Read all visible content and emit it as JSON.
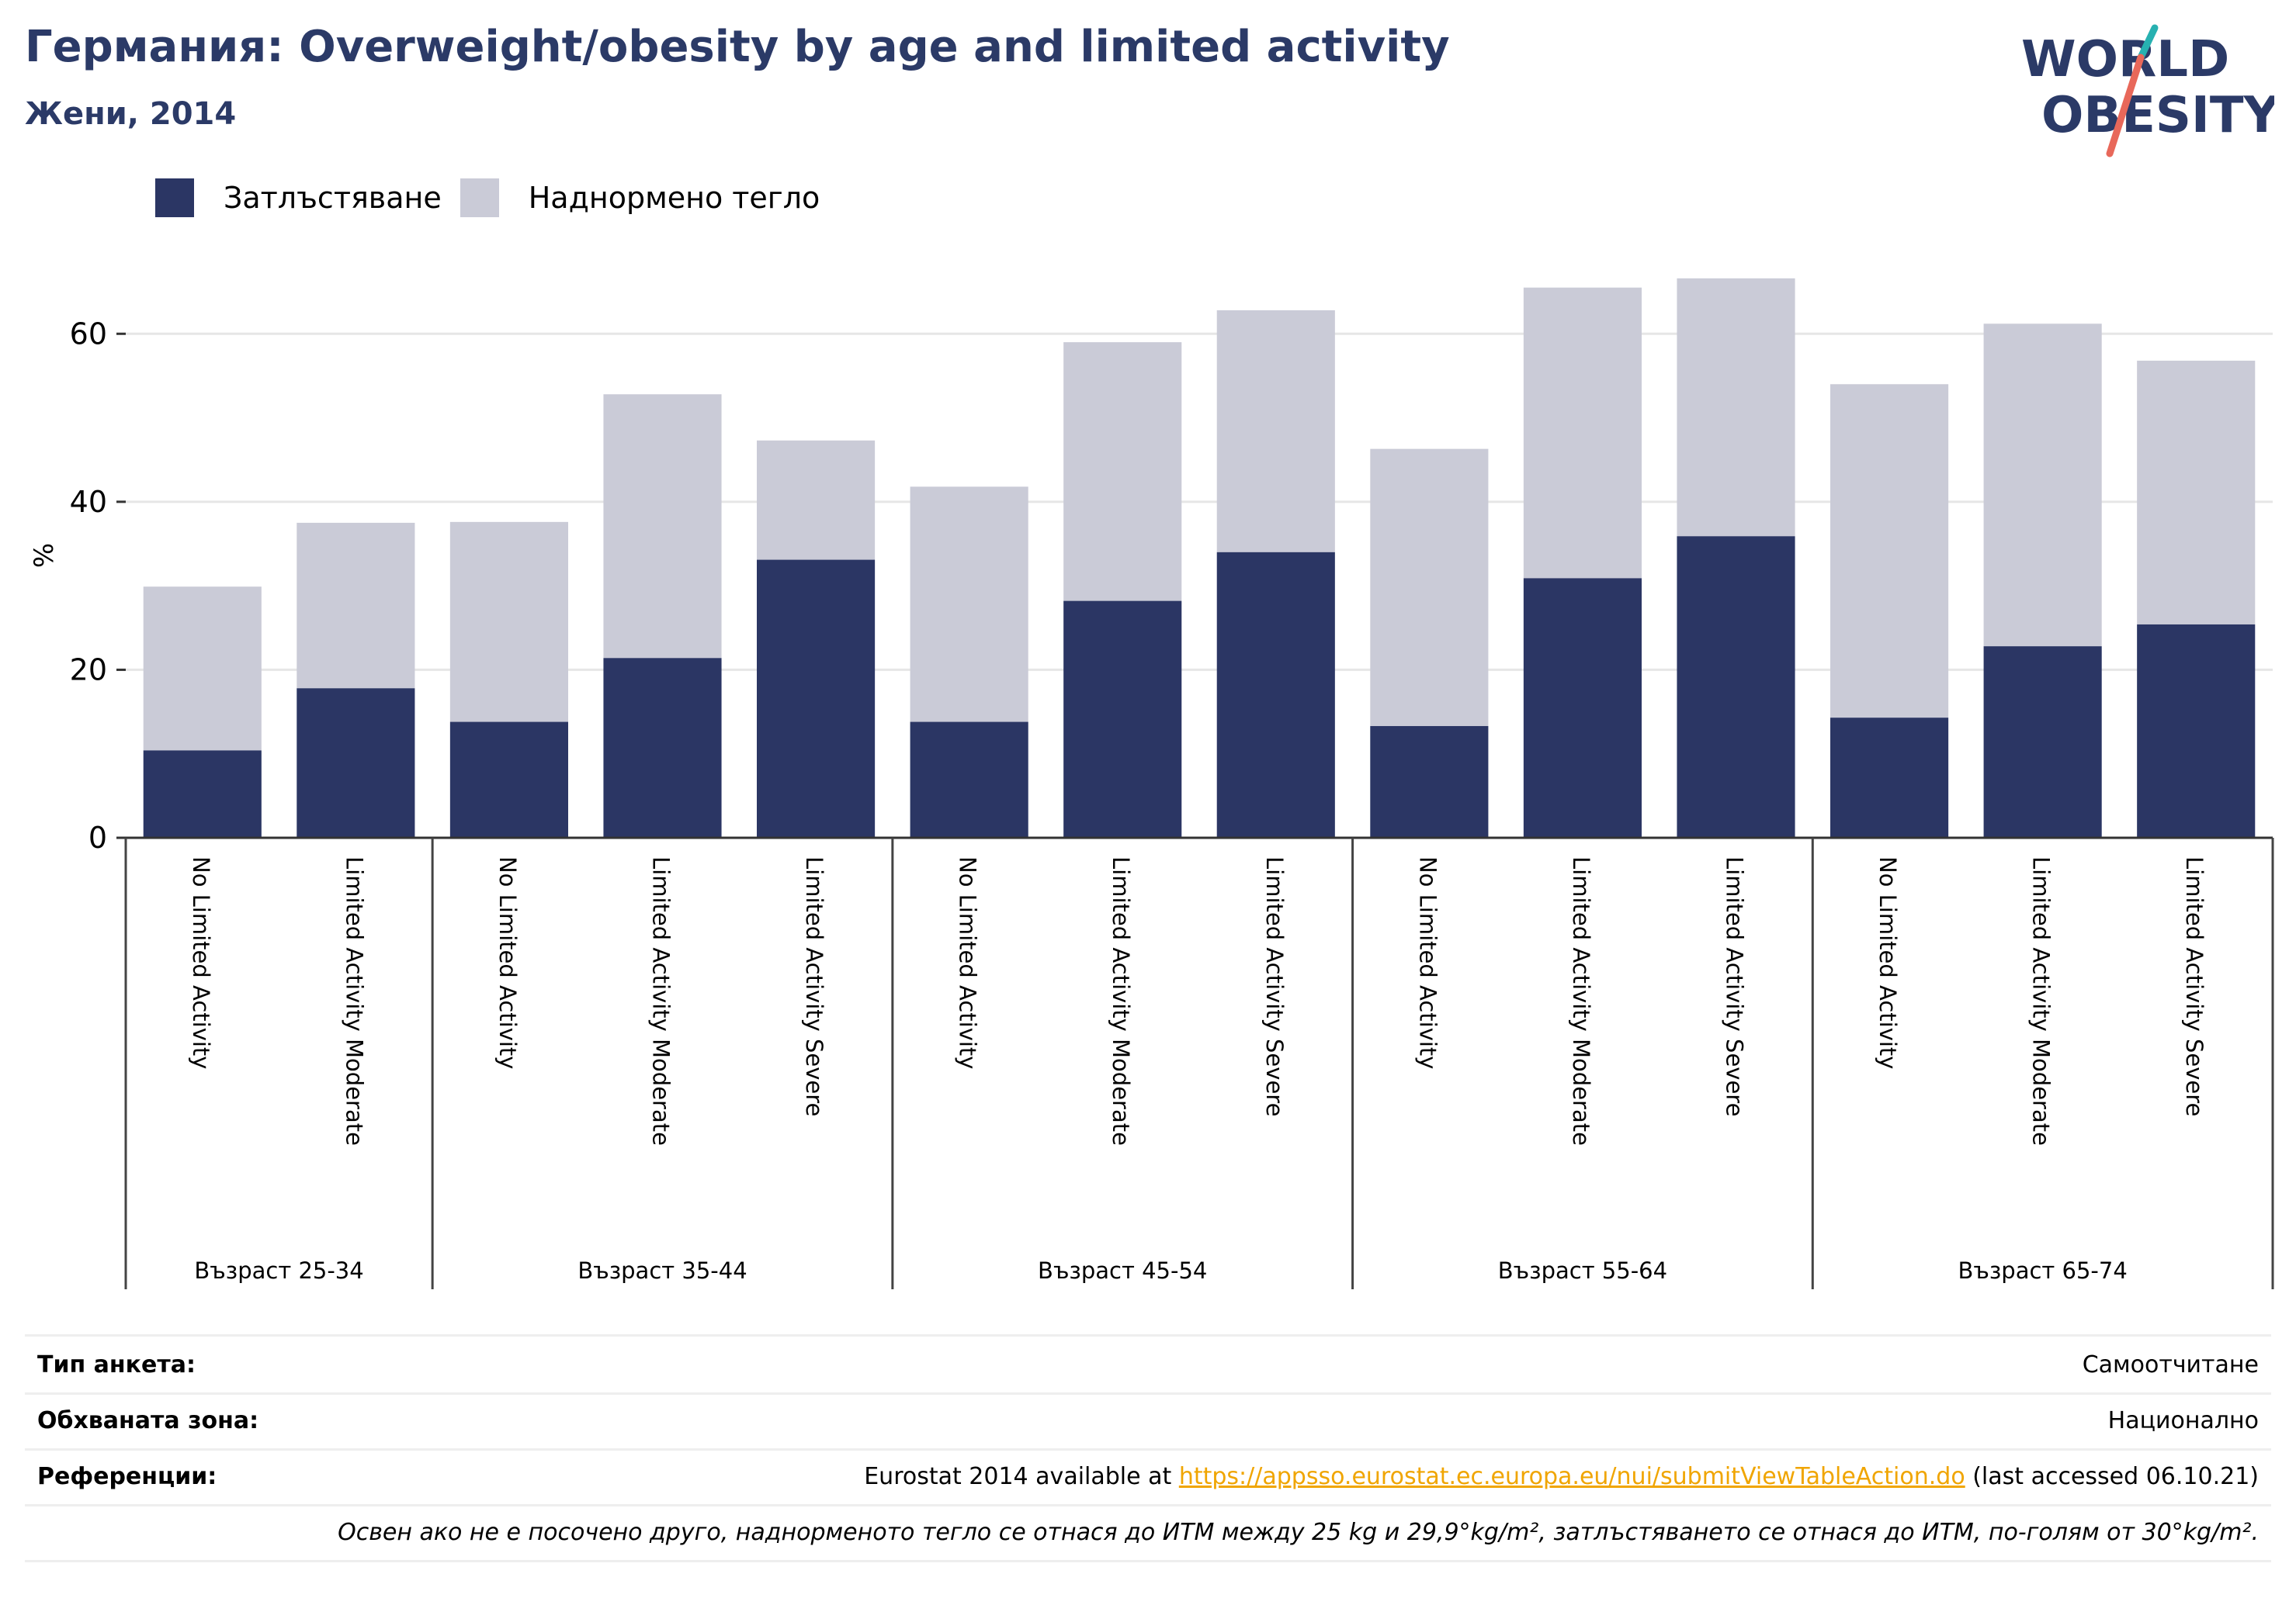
{
  "header": {
    "title": "Германия: Overweight/obesity by age and limited activity",
    "subtitle": "Жени, 2014"
  },
  "logo": {
    "line1": "WORLD",
    "line2": "OBESITY"
  },
  "colors": {
    "obesity": "#2b3664",
    "overweight": "#cacbd7",
    "title": "#2b3a67",
    "link": "#f0a500"
  },
  "chart_data": {
    "type": "bar",
    "stacked": true,
    "ylabel": "%",
    "ylim": [
      0,
      70
    ],
    "yticks": [
      0,
      20,
      40,
      60
    ],
    "grid": true,
    "legend_position": "top-left",
    "groups": [
      {
        "label": "Възраст 25-34",
        "categories": [
          "No Limited Activity",
          "Limited Activity Moderate"
        ]
      },
      {
        "label": "Възраст 35-44",
        "categories": [
          "No Limited Activity",
          "Limited Activity Moderate",
          "Limited Activity Severe"
        ]
      },
      {
        "label": "Възраст 45-54",
        "categories": [
          "No Limited Activity",
          "Limited Activity Moderate",
          "Limited Activity Severe"
        ]
      },
      {
        "label": "Възраст 55-64",
        "categories": [
          "No Limited Activity",
          "Limited Activity Moderate",
          "Limited Activity Severe"
        ]
      },
      {
        "label": "Възраст 65-74",
        "categories": [
          "No Limited Activity",
          "Limited Activity Moderate",
          "Limited Activity Severe"
        ]
      }
    ],
    "series": [
      {
        "name": "Затлъстяване",
        "color": "#2b3664",
        "values": [
          10.4,
          17.8,
          13.8,
          21.4,
          33.1,
          13.8,
          28.2,
          34.0,
          13.3,
          30.9,
          35.9,
          14.3,
          22.8,
          25.4
        ]
      },
      {
        "name": "Наднормено тегло",
        "color": "#cacbd7",
        "values": [
          19.5,
          19.7,
          23.8,
          31.4,
          14.2,
          28.0,
          30.8,
          28.8,
          33.0,
          34.6,
          30.7,
          39.7,
          38.4,
          31.4
        ]
      }
    ]
  },
  "info": {
    "survey_type_label": "Тип анкета:",
    "survey_type_value": "Самоотчитане",
    "coverage_label": "Обхваната зона:",
    "coverage_value": "Национално",
    "references_label": "Референции:",
    "references_prefix": "Eurostat 2014 available at ",
    "references_link": "https://appsso.eurostat.ec.europa.eu/nui/submitViewTableAction.do",
    "references_suffix": " (last accessed 06.10.21)",
    "note": "Освен ако не е посочено друго, наднорменото тегло се отнася до ИТМ между 25 kg и 29,9°kg/m², затлъстяването се отнася до ИТМ, по-голям от 30°kg/m²."
  }
}
